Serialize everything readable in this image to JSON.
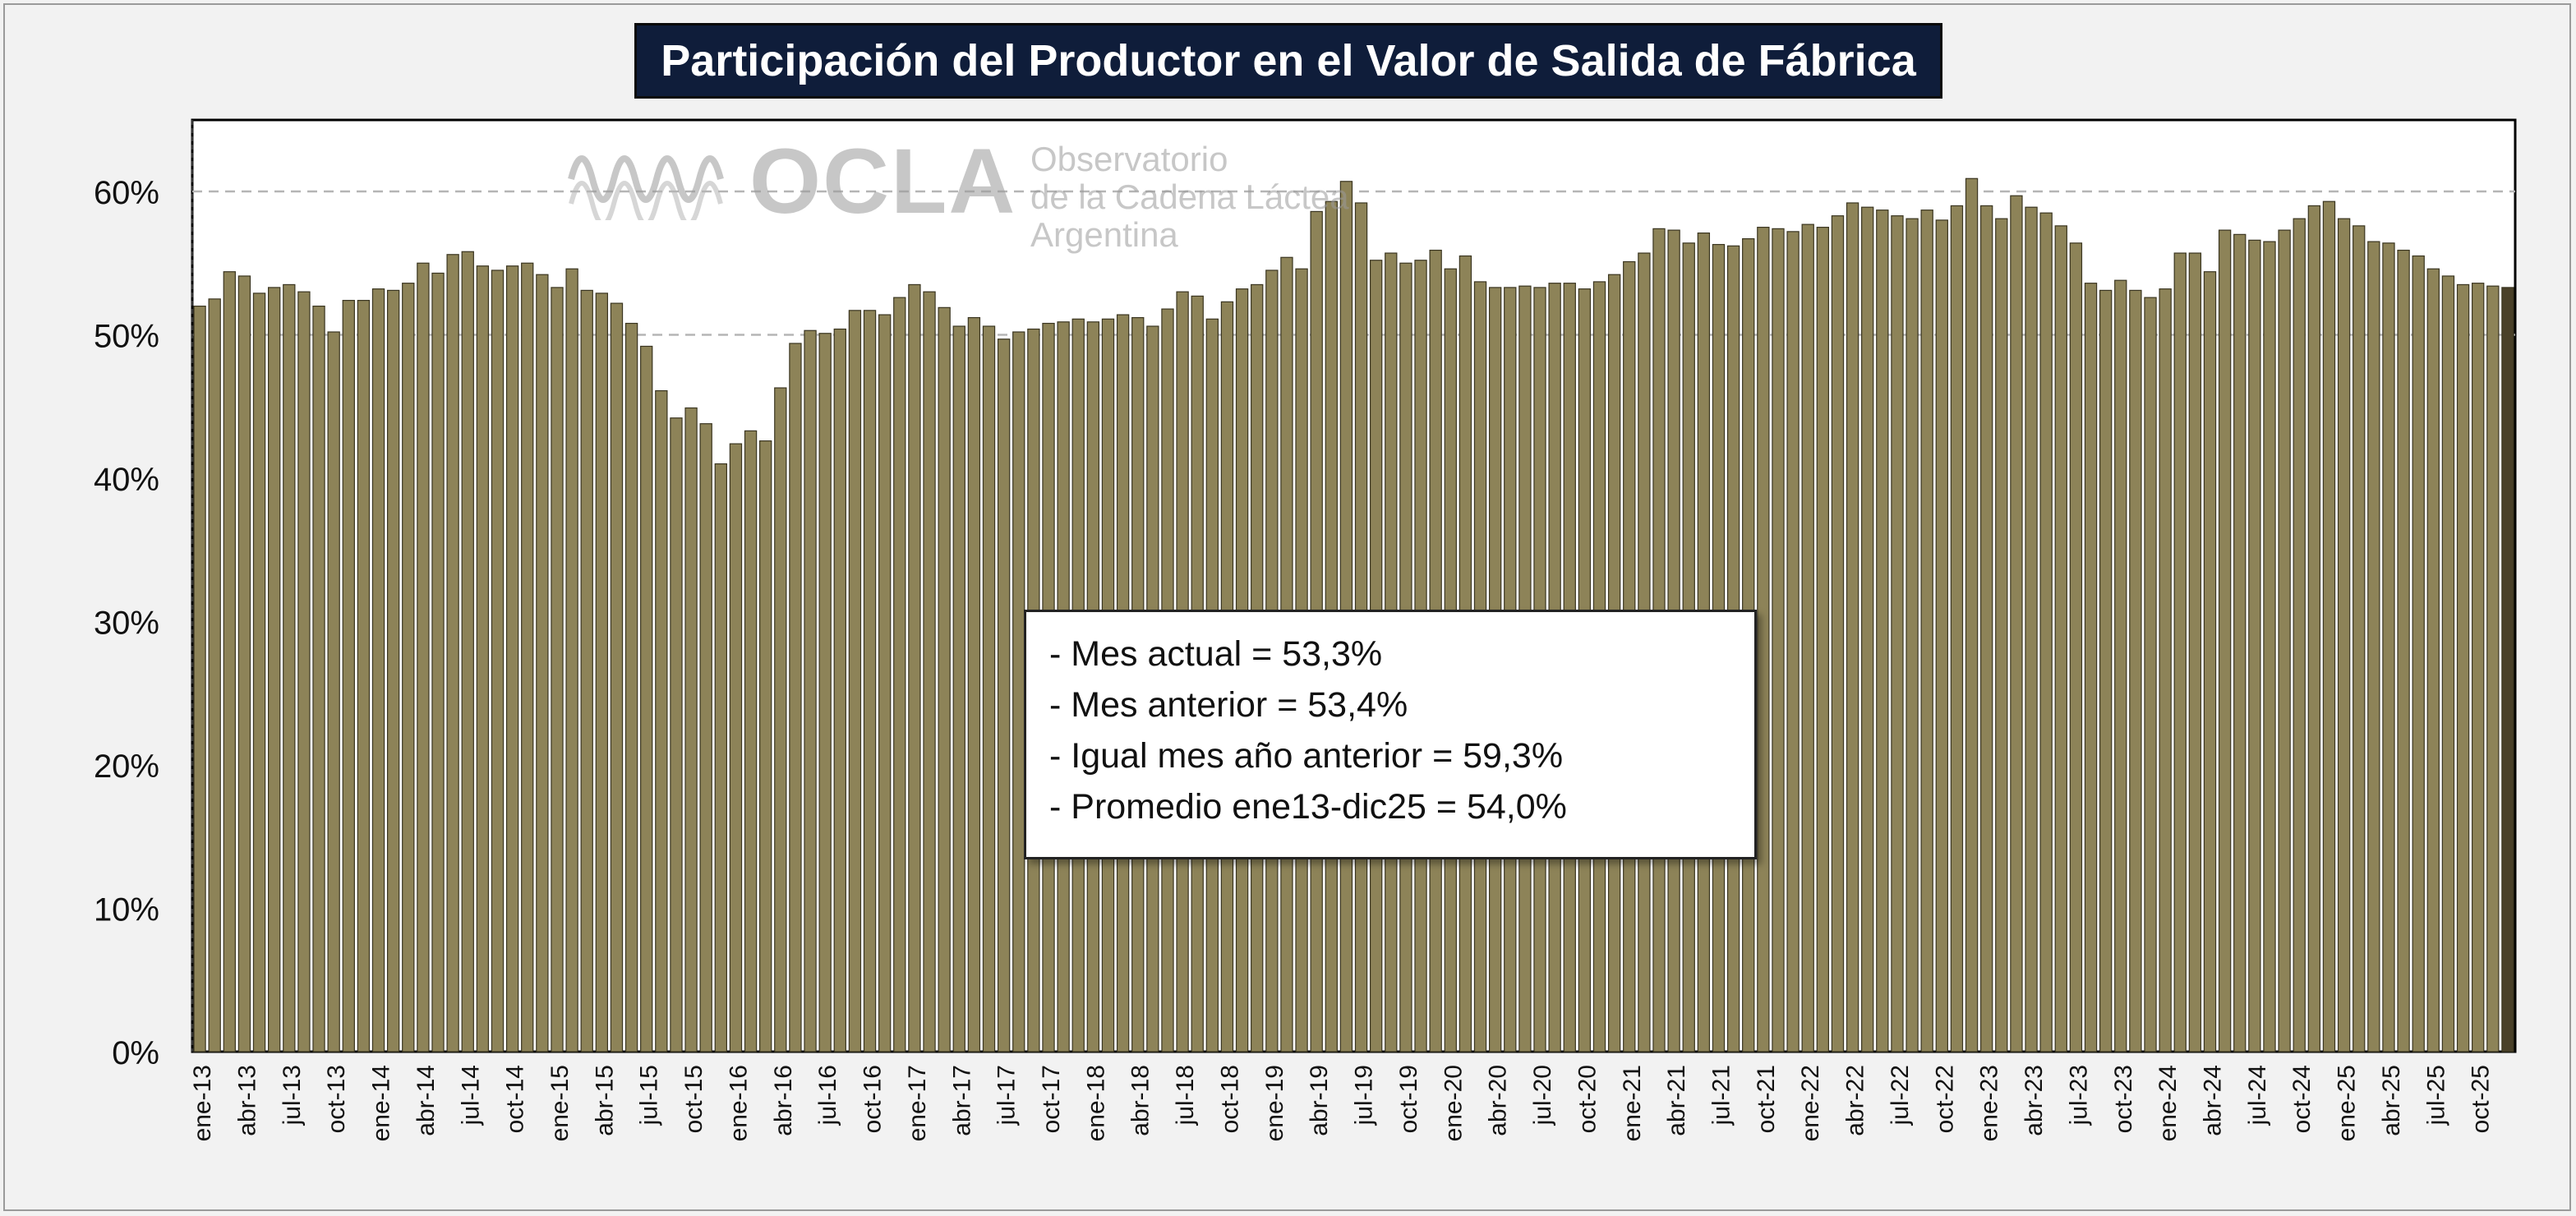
{
  "chart_data": {
    "type": "bar",
    "title": "Participación del Productor en el Valor de Salida de Fábrica",
    "xlabel": "",
    "ylabel": "",
    "ylim": [
      0,
      65
    ],
    "yticks": [
      "0%",
      "10%",
      "20%",
      "30%",
      "40%",
      "50%",
      "60%"
    ],
    "y_tick_values": [
      0,
      10,
      20,
      30,
      40,
      50,
      60
    ],
    "dashed_gridlines": [
      50,
      60
    ],
    "x_tick_labels": [
      "ene-13",
      "abr-13",
      "jul-13",
      "oct-13",
      "ene-14",
      "abr-14",
      "jul-14",
      "oct-14",
      "ene-15",
      "abr-15",
      "jul-15",
      "oct-15",
      "ene-16",
      "abr-16",
      "jul-16",
      "oct-16",
      "ene-17",
      "abr-17",
      "jul-17",
      "oct-17",
      "ene-18",
      "abr-18",
      "jul-18",
      "oct-18",
      "ene-19",
      "abr-19",
      "jul-19",
      "oct-19",
      "ene-20",
      "abr-20",
      "jul-20",
      "oct-20",
      "ene-21",
      "abr-21",
      "jul-21",
      "oct-21",
      "ene-22",
      "abr-22",
      "jul-22",
      "oct-22",
      "ene-23",
      "abr-23",
      "jul-23",
      "oct-23",
      "ene-24",
      "abr-24",
      "jul-24",
      "oct-24",
      "ene-25",
      "abr-25",
      "jul-25",
      "oct-25"
    ],
    "x_tick_every": 3,
    "values": [
      52.0,
      52.5,
      54.4,
      54.1,
      52.9,
      53.3,
      53.5,
      53.0,
      52.0,
      50.2,
      52.4,
      52.4,
      53.2,
      53.1,
      53.6,
      55.0,
      54.3,
      55.6,
      55.8,
      54.8,
      54.5,
      54.8,
      55.0,
      54.2,
      53.3,
      54.6,
      53.1,
      52.9,
      52.2,
      50.8,
      49.2,
      46.1,
      44.2,
      44.9,
      43.8,
      41.0,
      42.4,
      43.3,
      42.6,
      46.3,
      49.4,
      50.3,
      50.1,
      50.4,
      51.7,
      51.7,
      51.4,
      52.6,
      53.5,
      53.0,
      51.9,
      50.6,
      51.2,
      50.6,
      49.7,
      50.2,
      50.4,
      50.8,
      50.9,
      51.1,
      50.9,
      51.1,
      51.4,
      51.2,
      50.6,
      51.8,
      53.0,
      52.7,
      51.1,
      52.3,
      53.2,
      53.5,
      54.5,
      55.4,
      54.6,
      58.6,
      59.3,
      60.7,
      59.2,
      55.2,
      55.7,
      55.0,
      55.2,
      55.9,
      54.6,
      55.5,
      53.7,
      53.3,
      53.3,
      53.4,
      53.3,
      53.6,
      53.6,
      53.2,
      53.7,
      54.2,
      55.1,
      55.7,
      57.4,
      57.3,
      56.4,
      57.1,
      56.3,
      56.2,
      56.7,
      57.5,
      57.4,
      57.2,
      57.7,
      57.5,
      58.3,
      59.2,
      58.9,
      58.7,
      58.3,
      58.1,
      58.7,
      58.0,
      59.0,
      60.9,
      59.0,
      58.1,
      59.7,
      58.9,
      58.5,
      57.6,
      56.4,
      53.6,
      53.1,
      53.8,
      53.1,
      52.6,
      53.2,
      55.7,
      55.7,
      54.4,
      57.3,
      57.0,
      56.6,
      56.5,
      57.3,
      58.1,
      59.0,
      59.3,
      58.1,
      57.6,
      56.5,
      56.4,
      55.9,
      55.5,
      54.6,
      54.1,
      53.5,
      53.6,
      53.4,
      53.3
    ],
    "bar_color": "#8d8358",
    "last_bar_color": "#4a4129",
    "annotation": [
      "- Mes actual = 53,3%",
      "- Mes anterior = 53,4%",
      "- Igual mes año anterior = 59,3%",
      "- Promedio ene13-dic25 = 54,0%"
    ]
  },
  "watermark": {
    "brand": "OCLA",
    "line1": "Observatorio",
    "line2": "de la Cadena Láctea",
    "line3": "Argentina"
  }
}
